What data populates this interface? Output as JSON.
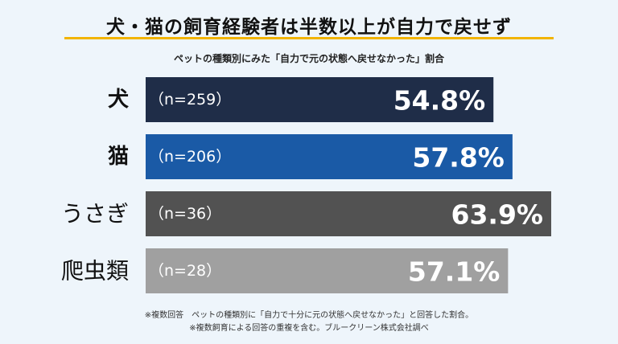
{
  "title": "犬・猫の飼育経験者は半数以上が自力で戻せず",
  "subtitle": "ペットの種類別にみた「自力で元の状態へ戻せなかった」割合",
  "chart_data": {
    "type": "bar",
    "orientation": "horizontal",
    "categories": [
      "犬",
      "猫",
      "うさぎ",
      "爬虫類"
    ],
    "sample_sizes": [
      "（n=259）",
      "（n=206）",
      "（n=36）",
      "（n=28）"
    ],
    "values": [
      54.8,
      57.8,
      63.9,
      57.1
    ],
    "value_labels": [
      "54.8%",
      "57.8%",
      "63.9%",
      "57.1%"
    ],
    "colors": [
      "#1f2d48",
      "#1a5aa6",
      "#525252",
      "#a0a0a0"
    ],
    "xlim": [
      0,
      70
    ]
  },
  "footnotes": [
    "※複数回答　ペットの種類別に「自力で十分に元の状態へ戻せなかった」と回答した割合。",
    "※複数飼育による回答の重複を含む。ブルークリーン株式会社調べ"
  ]
}
